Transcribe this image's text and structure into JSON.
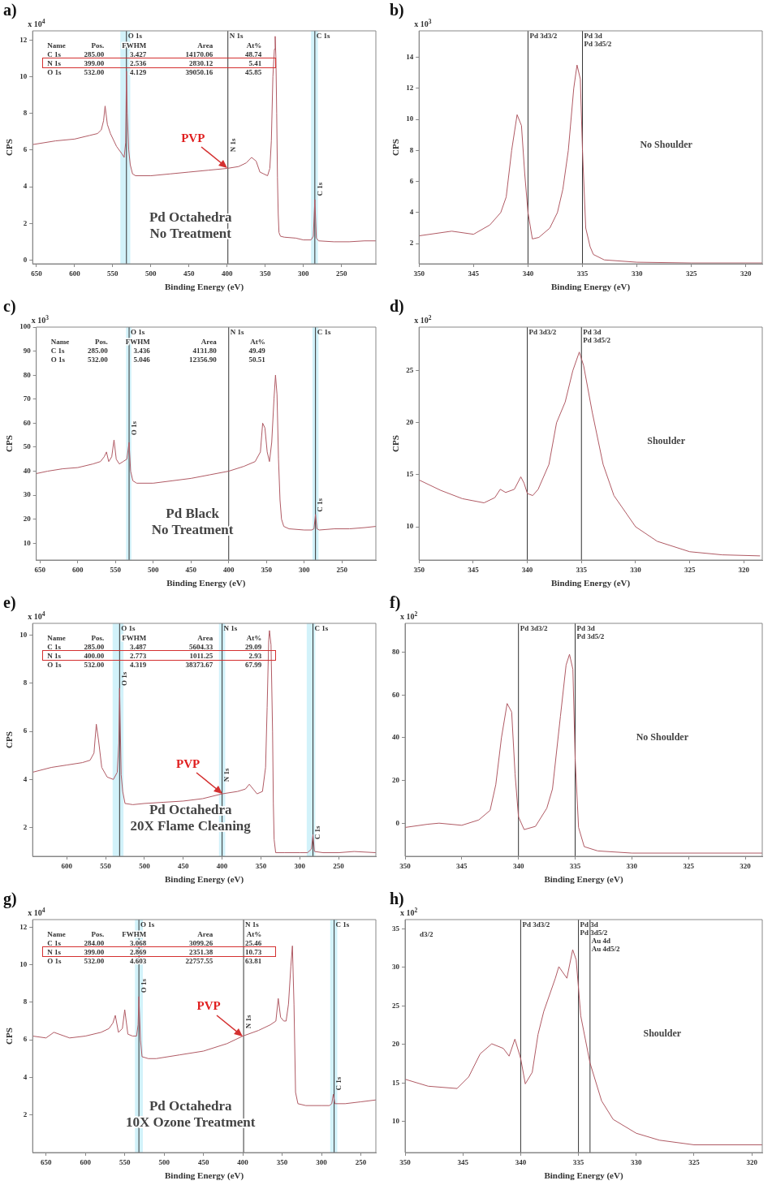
{
  "chart_data": [
    {
      "type": "line",
      "title": "a)",
      "xlabel": "Binding Energy (eV)",
      "ylabel": "CPS",
      "color": "#b05a64",
      "x": [
        655,
        625,
        600,
        580,
        570,
        565,
        562,
        560,
        557,
        553,
        545,
        538,
        535,
        533,
        532,
        531,
        529,
        527,
        524,
        520,
        500,
        475,
        450,
        425,
        400,
        385,
        375,
        368,
        362,
        357,
        352,
        347,
        344,
        342,
        340,
        338,
        337,
        336,
        335,
        334,
        333,
        332,
        330,
        325,
        310,
        300,
        290,
        287,
        285,
        283,
        280,
        260,
        240,
        220,
        205
      ],
      "values": [
        6.3,
        6.5,
        6.6,
        6.8,
        6.9,
        7.1,
        7.6,
        8.4,
        7.4,
        6.9,
        6.2,
        5.8,
        5.6,
        6.4,
        10.3,
        8.0,
        6.0,
        5.2,
        4.7,
        4.6,
        4.6,
        4.7,
        4.8,
        4.9,
        5.0,
        5.1,
        5.3,
        5.6,
        5.4,
        4.8,
        4.7,
        4.6,
        5.0,
        6.5,
        10.0,
        11.5,
        12.2,
        11.0,
        8.0,
        4.5,
        2.5,
        1.5,
        1.3,
        1.25,
        1.2,
        1.1,
        1.1,
        1.3,
        3.3,
        1.2,
        1.05,
        1.0,
        1.0,
        1.05,
        1.05
      ],
      "xlim": [
        655,
        205
      ],
      "xticks": [
        650,
        600,
        550,
        500,
        450,
        400,
        350,
        300,
        250
      ],
      "ylim": [
        -0.2,
        12.5
      ],
      "yticks": [
        0,
        2,
        4,
        6,
        8,
        10,
        12
      ],
      "ref_lines": [
        {
          "axis": "x",
          "value": 532,
          "label": "O 1s",
          "color": "#333333"
        },
        {
          "axis": "x",
          "value": 399,
          "label": "N 1s",
          "color": "#333333"
        },
        {
          "axis": "x",
          "value": 285,
          "label": "C 1s",
          "color": "#333333"
        }
      ],
      "bands": [
        {
          "axis": "x",
          "from": 540,
          "to": 527,
          "color": "#d2f2fa"
        },
        {
          "axis": "x",
          "from": 290,
          "to": 281,
          "color": "#d2f2fa"
        }
      ],
      "subtitle": "Pd Octahedra\nNo Treatment",
      "annotations": [
        "x 10$^{4}$",
        "Name Pos. FWHM Area At%",
        "C 1s 285.00 3.427 14170.06 48.74",
        "N 1s 399.00 2.536 2830.12 5.41",
        "O 1s 532.00 4.129 39050.16 45.85",
        {
          "text": "N 1s",
          "x": 399,
          "y": 5.9
        },
        {
          "text": "C 1s",
          "x": 285,
          "y": 3.5
        },
        {
          "text": "PVP",
          "x": 400,
          "y": 5.0
        }
      ]
    },
    {
      "type": "line",
      "title": "b)",
      "xlabel": "Binding Energy (eV)",
      "ylabel": "CPS",
      "color": "#b05a64",
      "x": [
        350,
        348,
        347,
        345,
        343.5,
        342.5,
        342,
        341.5,
        341,
        340.6,
        340.3,
        340,
        339.6,
        339,
        338,
        337.3,
        336.8,
        336.3,
        335.8,
        335.5,
        335.2,
        335,
        334.7,
        334.3,
        334,
        333,
        330,
        325,
        318.5
      ],
      "values": [
        2.5,
        2.7,
        2.8,
        2.6,
        3.2,
        4.0,
        5.0,
        8.0,
        10.3,
        9.6,
        6.5,
        4.0,
        2.3,
        2.4,
        3.0,
        4.0,
        5.5,
        8.0,
        12.0,
        13.5,
        12.6,
        8.0,
        3.0,
        1.8,
        1.3,
        0.95,
        0.8,
        0.75,
        0.75
      ],
      "xlim": [
        350,
        318.5
      ],
      "xticks": [
        350,
        345,
        340,
        335,
        330,
        325,
        320
      ],
      "ylim": [
        0.7,
        15.7
      ],
      "yticks": [
        2,
        4,
        6,
        8,
        10,
        12,
        14
      ],
      "ref_lines": [
        {
          "axis": "x",
          "value": 340,
          "label": "Pd 3d3/2",
          "color": "#333333"
        },
        {
          "axis": "x",
          "value": 335,
          "label": "Pd 3d\nPd 3d5/2",
          "color": "#333333"
        }
      ],
      "subtitle": "No Shoulder",
      "annotations": [
        "x 10$^{3}$"
      ]
    },
    {
      "type": "line",
      "title": "c)",
      "xlabel": "Binding Energy (eV)",
      "ylabel": "CPS",
      "color": "#b05a64",
      "x": [
        655,
        640,
        620,
        600,
        580,
        570,
        565,
        562,
        559,
        555,
        552,
        549,
        545,
        540,
        535,
        532,
        530,
        527,
        522,
        500,
        475,
        450,
        425,
        400,
        380,
        365,
        358,
        355,
        352,
        349,
        346,
        343,
        340,
        338,
        336,
        334,
        332,
        330,
        327,
        320,
        300,
        290,
        287,
        285,
        283,
        280,
        260,
        240,
        220,
        205
      ],
      "values": [
        39,
        40,
        41,
        41.5,
        43,
        44,
        46,
        48,
        44,
        46,
        53,
        45,
        43,
        44,
        45,
        52,
        40,
        36,
        35,
        35,
        36,
        37,
        38.5,
        40,
        42,
        44,
        48,
        60,
        58,
        48,
        44,
        52,
        70,
        80,
        72,
        45,
        28,
        20,
        17,
        16,
        15.5,
        15.5,
        16,
        22,
        16,
        15.5,
        16,
        16,
        16.5,
        17
      ],
      "xlim": [
        655,
        205
      ],
      "xticks": [
        650,
        600,
        550,
        500,
        450,
        400,
        350,
        300,
        250
      ],
      "ylim": [
        3,
        100
      ],
      "yticks": [
        10,
        20,
        30,
        40,
        50,
        60,
        70,
        80,
        90,
        100
      ],
      "ref_lines": [
        {
          "axis": "x",
          "value": 532,
          "label": "O 1s",
          "color": "#333333"
        },
        {
          "axis": "x",
          "value": 400,
          "label": "N 1s",
          "color": "#333333"
        },
        {
          "axis": "x",
          "value": 285,
          "label": "C 1s",
          "color": "#333333"
        }
      ],
      "bands": [
        {
          "axis": "x",
          "from": 536,
          "to": 529,
          "color": "#d2f2fa"
        },
        {
          "axis": "x",
          "from": 289,
          "to": 281,
          "color": "#d2f2fa"
        }
      ],
      "subtitle": "Pd Black\nNo Treatment",
      "annotations": [
        "x 10$^{3}$",
        "Name Pos. FWHM Area At%",
        "C 1s 285.00 3.436 4131.80 49.49",
        "O 1s 532.00 5.046 12356.90 50.51",
        {
          "text": "O 1s",
          "x": 532,
          "y": 55
        },
        {
          "text": "C 1s",
          "x": 285,
          "y": 23
        }
      ]
    },
    {
      "type": "line",
      "title": "d)",
      "xlabel": "Binding Energy (eV)",
      "ylabel": "CPS",
      "color": "#b05a64",
      "x": [
        350,
        348,
        346,
        344,
        343,
        342.5,
        342,
        341.2,
        340.6,
        340.3,
        340,
        339.5,
        339,
        338,
        337.3,
        336.5,
        335.8,
        335.2,
        334.8,
        334,
        333,
        332,
        330,
        328,
        325,
        322,
        318.5
      ],
      "values": [
        14.5,
        13.5,
        12.7,
        12.3,
        12.8,
        13.6,
        13.3,
        13.6,
        14.8,
        14.2,
        13.2,
        13.0,
        13.6,
        16.0,
        20.0,
        22.0,
        25.0,
        26.8,
        25.5,
        21.0,
        16.0,
        13.0,
        10.0,
        8.6,
        7.6,
        7.3,
        7.2
      ],
      "xlim": [
        350,
        318.3
      ],
      "xticks": [
        350,
        345,
        340,
        335,
        330,
        325,
        320
      ],
      "ylim": [
        6.8,
        29.2
      ],
      "yticks": [
        10,
        15,
        20,
        25
      ],
      "ref_lines": [
        {
          "axis": "x",
          "value": 340,
          "label": "Pd 3d3/2",
          "color": "#333333"
        },
        {
          "axis": "x",
          "value": 335,
          "label": "Pd 3d\nPd 3d5/2",
          "color": "#333333"
        }
      ],
      "subtitle": "Shoulder",
      "annotations": [
        "x 10$^{2}$"
      ]
    },
    {
      "type": "line",
      "title": "e)",
      "xlabel": "Binding Energy (eV)",
      "ylabel": "CPS",
      "color": "#b05a64",
      "x": [
        644,
        620,
        600,
        580,
        570,
        565,
        562,
        559,
        555,
        548,
        540,
        535,
        533,
        532,
        530,
        528,
        525,
        515,
        500,
        475,
        450,
        425,
        400,
        380,
        370,
        365,
        360,
        355,
        348,
        344,
        342,
        340,
        339,
        337,
        335,
        334,
        333,
        331,
        320,
        300,
        290,
        285,
        283,
        281,
        270,
        250,
        230,
        202
      ],
      "values": [
        4.3,
        4.5,
        4.6,
        4.7,
        4.8,
        5.1,
        6.3,
        5.6,
        4.5,
        4.1,
        4.0,
        4.3,
        5.5,
        7.8,
        4.2,
        3.5,
        3.0,
        2.95,
        3.0,
        3.05,
        3.1,
        3.2,
        3.4,
        3.5,
        3.6,
        3.8,
        3.6,
        3.4,
        3.5,
        4.5,
        7.0,
        9.8,
        10.2,
        9.6,
        6.0,
        3.0,
        1.5,
        0.95,
        0.95,
        0.95,
        0.95,
        1.1,
        1.7,
        1.0,
        0.95,
        0.95,
        1.0,
        0.95
      ],
      "xlim": [
        644,
        202
      ],
      "xticks": [
        600,
        550,
        500,
        450,
        400,
        350,
        300,
        250
      ],
      "ylim": [
        0.8,
        10.5
      ],
      "yticks": [
        2,
        4,
        6,
        8,
        10
      ],
      "ref_lines": [
        {
          "axis": "x",
          "value": 532,
          "label": "O 1s",
          "color": "#333333"
        },
        {
          "axis": "x",
          "value": 400,
          "label": "N 1s",
          "color": "#333333"
        },
        {
          "axis": "x",
          "value": 283,
          "label": "C 1s",
          "color": "#333333"
        }
      ],
      "bands": [
        {
          "axis": "x",
          "from": 541,
          "to": 527,
          "color": "#d2f2fa"
        },
        {
          "axis": "x",
          "from": 404,
          "to": 396,
          "color": "#d2f2fa"
        },
        {
          "axis": "x",
          "from": 291,
          "to": 280,
          "color": "#d2f2fa"
        }
      ],
      "subtitle": "Pd Octahedra\n20X Flame Cleaning",
      "annotations": [
        "x 10$^{4}$",
        "Name Pos. FWHM Area At%",
        "C 1s 285.00 3.487 5604.33 29.09",
        "N 1s 400.00 2.773 1011.25 2.93",
        "O 1s 532.00 4.319 38373.67 67.99",
        {
          "text": "O 1s",
          "x": 532,
          "y": 7.9
        },
        {
          "text": "N 1s",
          "x": 400,
          "y": 3.9
        },
        {
          "text": "C 1s",
          "x": 283,
          "y": 1.5
        },
        {
          "text": "PVP",
          "x": 400,
          "y": 3.4
        }
      ]
    },
    {
      "type": "line",
      "title": "f)",
      "xlabel": "Binding Energy (eV)",
      "color": "#b05a64",
      "x": [
        350,
        348,
        347,
        345,
        343.5,
        342.5,
        342,
        341.5,
        341,
        340.6,
        340.3,
        340,
        339.5,
        338.5,
        337.5,
        337,
        336.3,
        335.8,
        335.5,
        335.2,
        335,
        334.7,
        334.2,
        333,
        330,
        318.5
      ],
      "values": [
        -2,
        -0.5,
        0,
        -1,
        1.5,
        6,
        18,
        40,
        56,
        52,
        23,
        3,
        -3,
        -1.5,
        7,
        16,
        50,
        74,
        79,
        72,
        30,
        -2,
        -11,
        -13,
        -14,
        -14
      ],
      "xlim": [
        350,
        318.5
      ],
      "xticks": [
        350,
        345,
        340,
        335,
        330,
        325,
        320
      ],
      "ylim": [
        -15.5,
        93.5
      ],
      "yticks": [
        0,
        20,
        40,
        60,
        80
      ],
      "ref_lines": [
        {
          "axis": "x",
          "value": 340,
          "label": "Pd 3d3/2",
          "color": "#333333"
        },
        {
          "axis": "x",
          "value": 335,
          "label": "Pd 3d\nPd 3d5/2",
          "color": "#333333"
        }
      ],
      "subtitle": "No Shoulder",
      "annotations": [
        "x 10$^{2}$"
      ]
    },
    {
      "type": "line",
      "title": "g)",
      "xlabel": "Binding Energy (eV)",
      "ylabel": "CPS",
      "color": "#b05a64",
      "x": [
        667,
        650,
        640,
        620,
        600,
        580,
        570,
        565,
        562,
        558,
        553,
        550,
        546,
        540,
        535,
        533,
        532,
        530,
        528,
        520,
        510,
        480,
        450,
        420,
        400,
        380,
        365,
        358,
        355,
        352,
        348,
        345,
        342,
        339,
        337,
        335,
        333,
        330,
        320,
        300,
        290,
        287,
        285,
        283,
        270,
        250,
        231
      ],
      "values": [
        6.2,
        6.1,
        6.4,
        6.1,
        6.2,
        6.4,
        6.6,
        6.9,
        7.3,
        6.4,
        6.6,
        7.6,
        6.3,
        6.2,
        6.2,
        6.8,
        8.3,
        6.0,
        5.1,
        5.0,
        5.0,
        5.2,
        5.4,
        5.8,
        6.2,
        6.5,
        6.8,
        7.0,
        8.2,
        7.2,
        7.0,
        7.0,
        7.9,
        9.9,
        11.0,
        7.9,
        3.2,
        2.6,
        2.5,
        2.5,
        2.5,
        2.6,
        3.1,
        2.6,
        2.6,
        2.7,
        2.8
      ],
      "xlim": [
        667,
        231
      ],
      "xticks": [
        650,
        600,
        550,
        500,
        450,
        400,
        350,
        300,
        250
      ],
      "ylim": [
        0,
        12.4
      ],
      "yticks": [
        2,
        4,
        6,
        8,
        10,
        12
      ],
      "ref_lines": [
        {
          "axis": "x",
          "value": 532,
          "label": "O 1s",
          "color": "#333333"
        },
        {
          "axis": "x",
          "value": 399,
          "label": "N 1s",
          "color": "#333333"
        },
        {
          "axis": "x",
          "value": 284,
          "label": "C 1s",
          "color": "#333333"
        }
      ],
      "bands": [
        {
          "axis": "x",
          "from": 537,
          "to": 527,
          "color": "#d2f2fa"
        },
        {
          "axis": "x",
          "from": 289,
          "to": 280,
          "color": "#d2f2fa"
        }
      ],
      "subtitle": "Pd Octahedra\n10X Ozone Treatment",
      "annotations": [
        "x 10$^{4}$",
        "Name Pos. FWHM Area At%",
        "C 1s 284.00 3.068 3099.26 25.46",
        "N 1s 399.00 2.869 2351.38 10.73",
        "O 1s 532.00 4.603 22757.55 63.81",
        {
          "text": "O 1s",
          "x": 532,
          "y": 8.5
        },
        {
          "text": "N 1s",
          "x": 399,
          "y": 6.6
        },
        {
          "text": "C 1s",
          "x": 284,
          "y": 3.3
        },
        {
          "text": "PVP",
          "x": 400,
          "y": 6.2
        }
      ]
    },
    {
      "type": "line",
      "title": "h)",
      "xlabel": "Binding Energy (eV)",
      "color": "#b05a64",
      "x": [
        350,
        348,
        345.5,
        344.5,
        343.5,
        342.5,
        341.5,
        341,
        340.5,
        340,
        339.6,
        339,
        338.5,
        338,
        337,
        336.7,
        336,
        335.5,
        335.2,
        334.8,
        334,
        333,
        332,
        330,
        328,
        325,
        319.1
      ],
      "values": [
        15.5,
        14.6,
        14.3,
        15.8,
        18.8,
        20.1,
        19.5,
        18.5,
        20.7,
        18.2,
        14.9,
        16.4,
        21.3,
        24.3,
        28.6,
        30.1,
        28.6,
        32.3,
        31.0,
        23.7,
        17.6,
        12.7,
        10.3,
        8.5,
        7.6,
        7.0,
        7.0
      ],
      "xlim": [
        350,
        319.1
      ],
      "xticks": [
        350,
        345,
        340,
        335,
        330,
        325,
        320
      ],
      "ylim": [
        6,
        36.2
      ],
      "yticks": [
        10,
        15,
        20,
        25,
        30,
        35
      ],
      "ref_lines": [
        {
          "axis": "x",
          "value": 340,
          "label": "Pd 3d3/2",
          "color": "#333333"
        },
        {
          "axis": "x",
          "value": 335,
          "label": "Pd 3d\nPd 3d5/2",
          "color": "#333333"
        },
        {
          "axis": "x",
          "value": 334,
          "label": "Au 4d\nAu 4d5/2",
          "color": "#333333"
        }
      ],
      "subtitle": "Shoulder",
      "annotations": [
        "x 10$^{2}$",
        "d3/2"
      ]
    }
  ]
}
